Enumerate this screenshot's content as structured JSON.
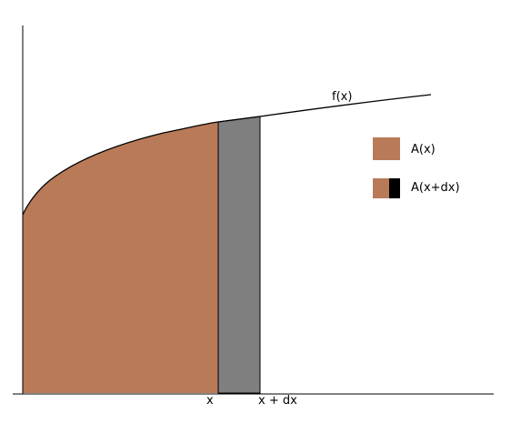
{
  "colors": {
    "background": "#ffffff",
    "area_fill": "#b97a57",
    "strip_fill": "#7f7f7f",
    "axis": "#000000",
    "curve": "#000000",
    "legend_strip_fill": "#000000"
  },
  "labels": {
    "curve": "f(x)",
    "x_tick": "x",
    "x_plus_dx_tick": "x + dx"
  },
  "legend": {
    "items": [
      {
        "label": "A(x)",
        "swatch": "area"
      },
      {
        "label": "A(x+dx)",
        "swatch": "area-plus-strip"
      }
    ]
  }
}
